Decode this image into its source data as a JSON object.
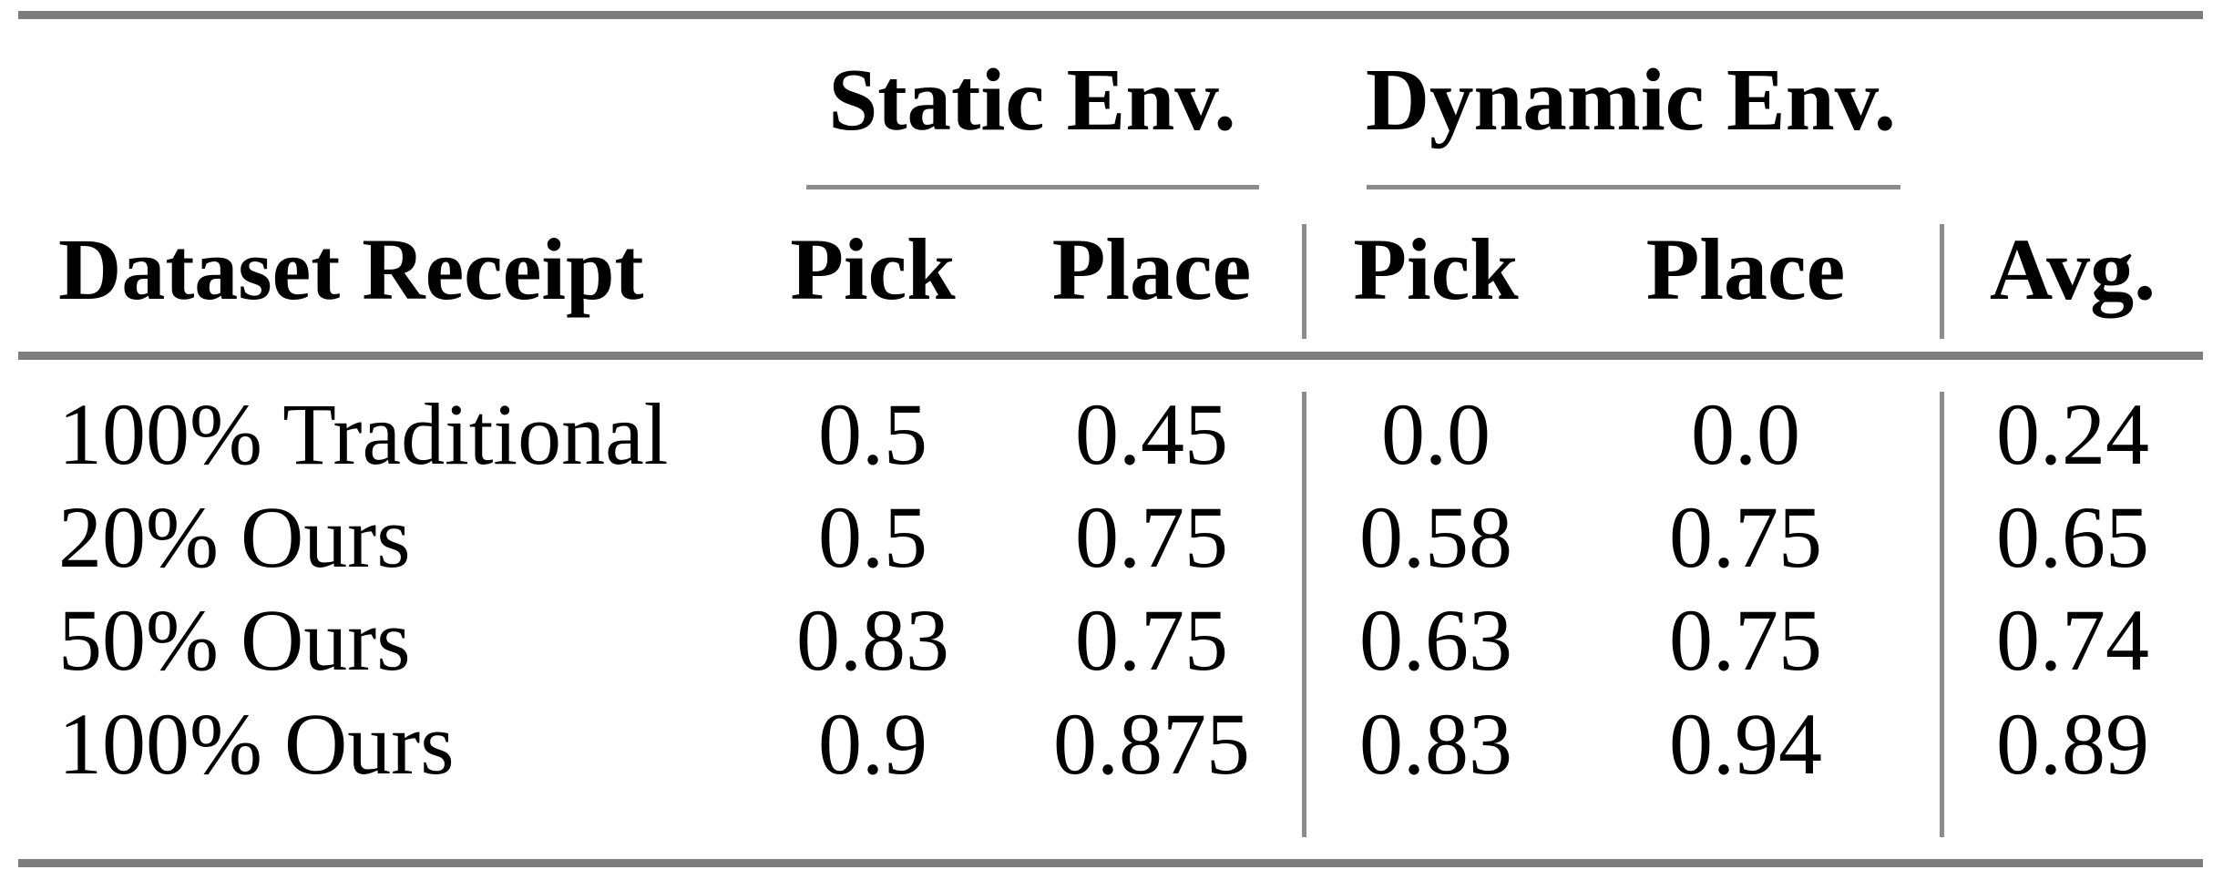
{
  "page": {
    "background_color": "#ffffff",
    "text_color": "#000000",
    "rule_color_thick": "#7d7d7d",
    "rule_color_thin": "#8c8c8c"
  },
  "table": {
    "group_headers": [
      {
        "label": "Static Env."
      },
      {
        "label": "Dynamic Env."
      }
    ],
    "headers": {
      "row_label": "Dataset Receipt",
      "static_pick": "Pick",
      "static_place": "Place",
      "dynamic_pick": "Pick",
      "dynamic_place": "Place",
      "avg": "Avg."
    },
    "rows": [
      {
        "label": "100% Traditional",
        "static_pick": "0.5",
        "static_place": "0.45",
        "dynamic_pick": "0.0",
        "dynamic_place": "0.0",
        "avg": "0.24"
      },
      {
        "label": "20% Ours",
        "static_pick": "0.5",
        "static_place": "0.75",
        "dynamic_pick": "0.58",
        "dynamic_place": "0.75",
        "avg": "0.65"
      },
      {
        "label": "50% Ours",
        "static_pick": "0.83",
        "static_place": "0.75",
        "dynamic_pick": "0.63",
        "dynamic_place": "0.75",
        "avg": "0.74"
      },
      {
        "label": "100% Ours",
        "static_pick": "0.9",
        "static_place": "0.875",
        "dynamic_pick": "0.83",
        "dynamic_place": "0.94",
        "avg": "0.89"
      }
    ]
  }
}
